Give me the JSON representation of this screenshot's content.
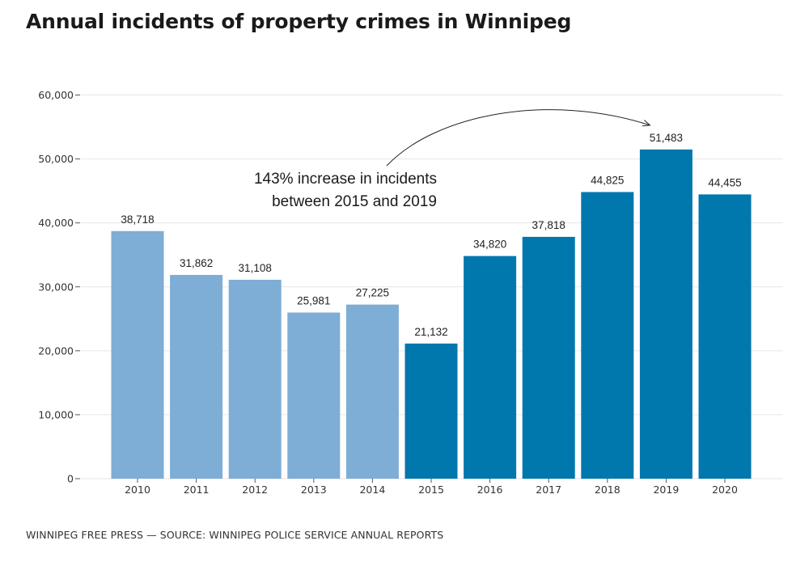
{
  "chart_data": {
    "type": "bar",
    "title": "Annual incidents of property crimes in Winnipeg",
    "source": "WINNIPEG FREE PRESS — SOURCE: WINNIPEG POLICE SERVICE ANNUAL REPORTS",
    "categories": [
      "2010",
      "2011",
      "2012",
      "2013",
      "2014",
      "2015",
      "2016",
      "2017",
      "2018",
      "2019",
      "2020"
    ],
    "values": [
      38718,
      31862,
      31108,
      25981,
      27225,
      21132,
      34820,
      37818,
      44825,
      51483,
      44455
    ],
    "data_labels": [
      "38,718",
      "31,862",
      "31,108",
      "25,981",
      "27,225",
      "21,132",
      "34,820",
      "37,818",
      "44,825",
      "51,483",
      "44,455"
    ],
    "ylim": [
      0,
      60000
    ],
    "yticks": [
      0,
      10000,
      20000,
      30000,
      40000,
      50000,
      60000
    ],
    "ytick_labels": [
      "0",
      "10,000",
      "20,000",
      "30,000",
      "40,000",
      "50,000",
      "60,000"
    ],
    "grid": true,
    "colors": {
      "before_2015": "#7eadd6",
      "from_2015": "#0077ad",
      "gridline": "#e6e6e6"
    },
    "annotation": {
      "lines": [
        "143% increase in incidents",
        "between 2015 and 2019"
      ],
      "arrow_target": "2019"
    }
  }
}
